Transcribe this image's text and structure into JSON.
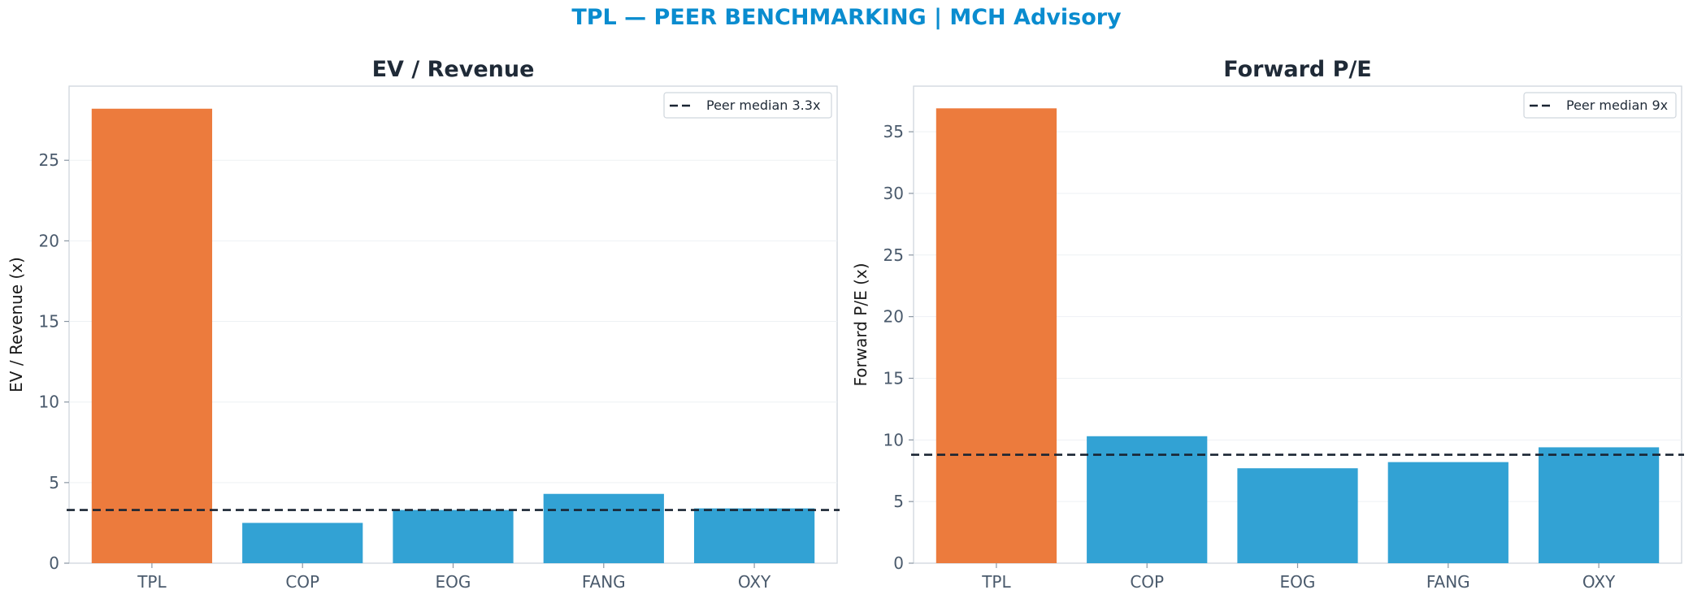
{
  "suptitle": "TPL — PEER BENCHMARKING | MCH Advisory",
  "colors": {
    "highlight": "#ec7b3d",
    "peer": "#32a2d4",
    "median_line": "#1a2533",
    "title": "#0a8ccf"
  },
  "chart_data": [
    {
      "type": "bar",
      "title": "EV / Revenue",
      "ylabel": "EV / Revenue (x)",
      "categories": [
        "TPL",
        "COP",
        "EOG",
        "FANG",
        "OXY"
      ],
      "values": [
        28.2,
        2.5,
        3.3,
        4.3,
        3.4
      ],
      "highlight": "TPL",
      "reference_line": {
        "value": 3.3,
        "label": "Peer median 3.3x",
        "style": "dashed"
      },
      "ylim": [
        0,
        29.6
      ],
      "yticks": [
        0,
        5,
        10,
        15,
        20,
        25
      ],
      "grid": "y",
      "legend_position": "top-right"
    },
    {
      "type": "bar",
      "title": "Forward P/E",
      "ylabel": "Forward P/E (x)",
      "categories": [
        "TPL",
        "COP",
        "EOG",
        "FANG",
        "OXY"
      ],
      "values": [
        36.9,
        10.3,
        7.7,
        8.2,
        9.4
      ],
      "highlight": "TPL",
      "reference_line": {
        "value": 8.8,
        "label": "Peer median 9x",
        "style": "dashed"
      },
      "ylim": [
        0,
        38.7
      ],
      "yticks": [
        0,
        5,
        10,
        15,
        20,
        25,
        30,
        35
      ],
      "grid": "y",
      "legend_position": "top-right"
    }
  ]
}
